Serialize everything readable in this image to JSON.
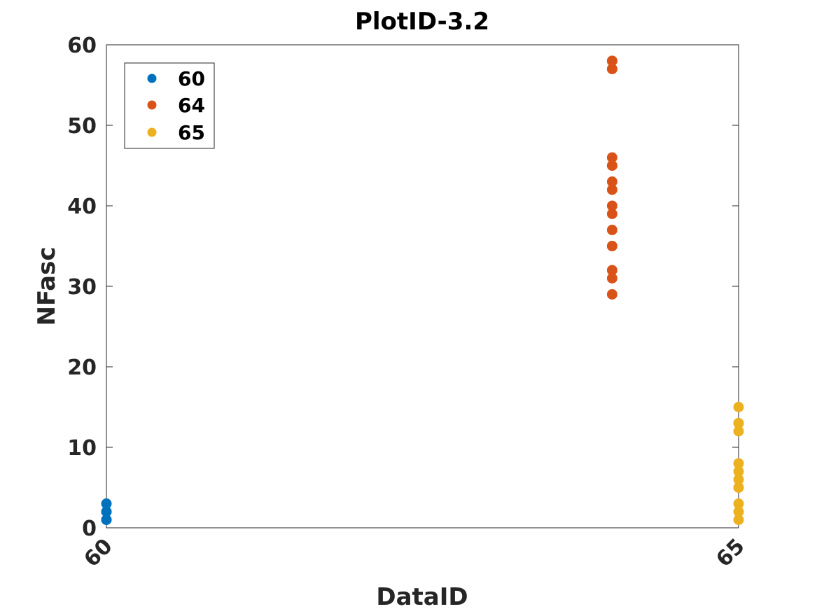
{
  "chart_data": {
    "type": "scatter",
    "title": "PlotID-3.2",
    "xlabel": "DataID",
    "ylabel": "NFasc",
    "xlim": [
      60,
      65
    ],
    "ylim": [
      0,
      60
    ],
    "xticks": [
      60,
      65
    ],
    "yticks": [
      0,
      10,
      20,
      30,
      40,
      50,
      60
    ],
    "grid": false,
    "legend_position": "top-left",
    "series": [
      {
        "name": "60",
        "color": "#0072BD",
        "x": [
          60,
          60,
          60,
          60,
          60
        ],
        "y": [
          1,
          1,
          2,
          2,
          3
        ]
      },
      {
        "name": "64",
        "color": "#D95319",
        "x": [
          64,
          64,
          64,
          64,
          64,
          64,
          64,
          64,
          64,
          64,
          64,
          64,
          64,
          64,
          64,
          64,
          64
        ],
        "y": [
          29,
          31,
          32,
          35,
          35,
          37,
          39,
          40,
          42,
          43,
          45,
          45,
          46,
          57,
          57,
          58,
          58
        ]
      },
      {
        "name": "65",
        "color": "#EDB120",
        "x": [
          65,
          65,
          65,
          65,
          65,
          65,
          65,
          65,
          65,
          65,
          65,
          65
        ],
        "y": [
          1,
          2,
          3,
          5,
          5,
          6,
          7,
          8,
          12,
          13,
          13,
          15
        ]
      }
    ]
  }
}
